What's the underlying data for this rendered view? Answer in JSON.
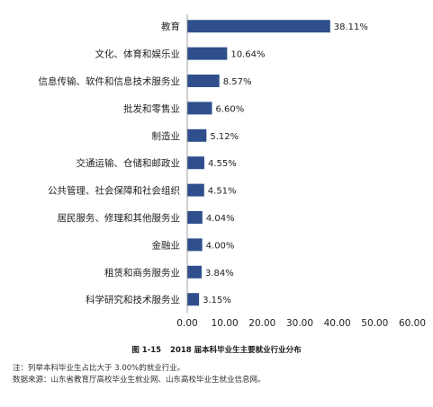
{
  "chart_data": {
    "type": "bar",
    "orientation": "horizontal",
    "categories": [
      "教育",
      "文化、体育和娱乐业",
      "信息传输、软件和信息技术服务业",
      "批发和零售业",
      "制造业",
      "交通运输、仓储和邮政业",
      "公共管理、社会保障和社会组织",
      "居民服务、修理和其他服务业",
      "金融业",
      "租赁和商务服务业",
      "科学研究和技术服务业"
    ],
    "values": [
      38.11,
      10.64,
      8.57,
      6.6,
      5.12,
      4.55,
      4.51,
      4.04,
      4.0,
      3.84,
      3.15
    ],
    "value_labels": [
      "38.11%",
      "10.64%",
      "8.57%",
      "6.60%",
      "5.12%",
      "4.55%",
      "4.51%",
      "4.04%",
      "4.00%",
      "3.84%",
      "3.15%"
    ],
    "xlim": [
      0,
      60
    ],
    "x_ticks": [
      "0.00",
      "10.00",
      "20.00",
      "30.00",
      "40.00",
      "50.00",
      "60.00"
    ],
    "bar_color": "#2e4f8c",
    "grid": false
  },
  "caption": {
    "number": "图 1-15",
    "title": "2018 届本科毕业生主要就业行业分布"
  },
  "notes": [
    "注：列举本科毕业生占比大于 3.00%的就业行业。",
    "数据来源：山东省教育厅高校毕业生就业网、山东高校毕业生就业信息网。"
  ]
}
